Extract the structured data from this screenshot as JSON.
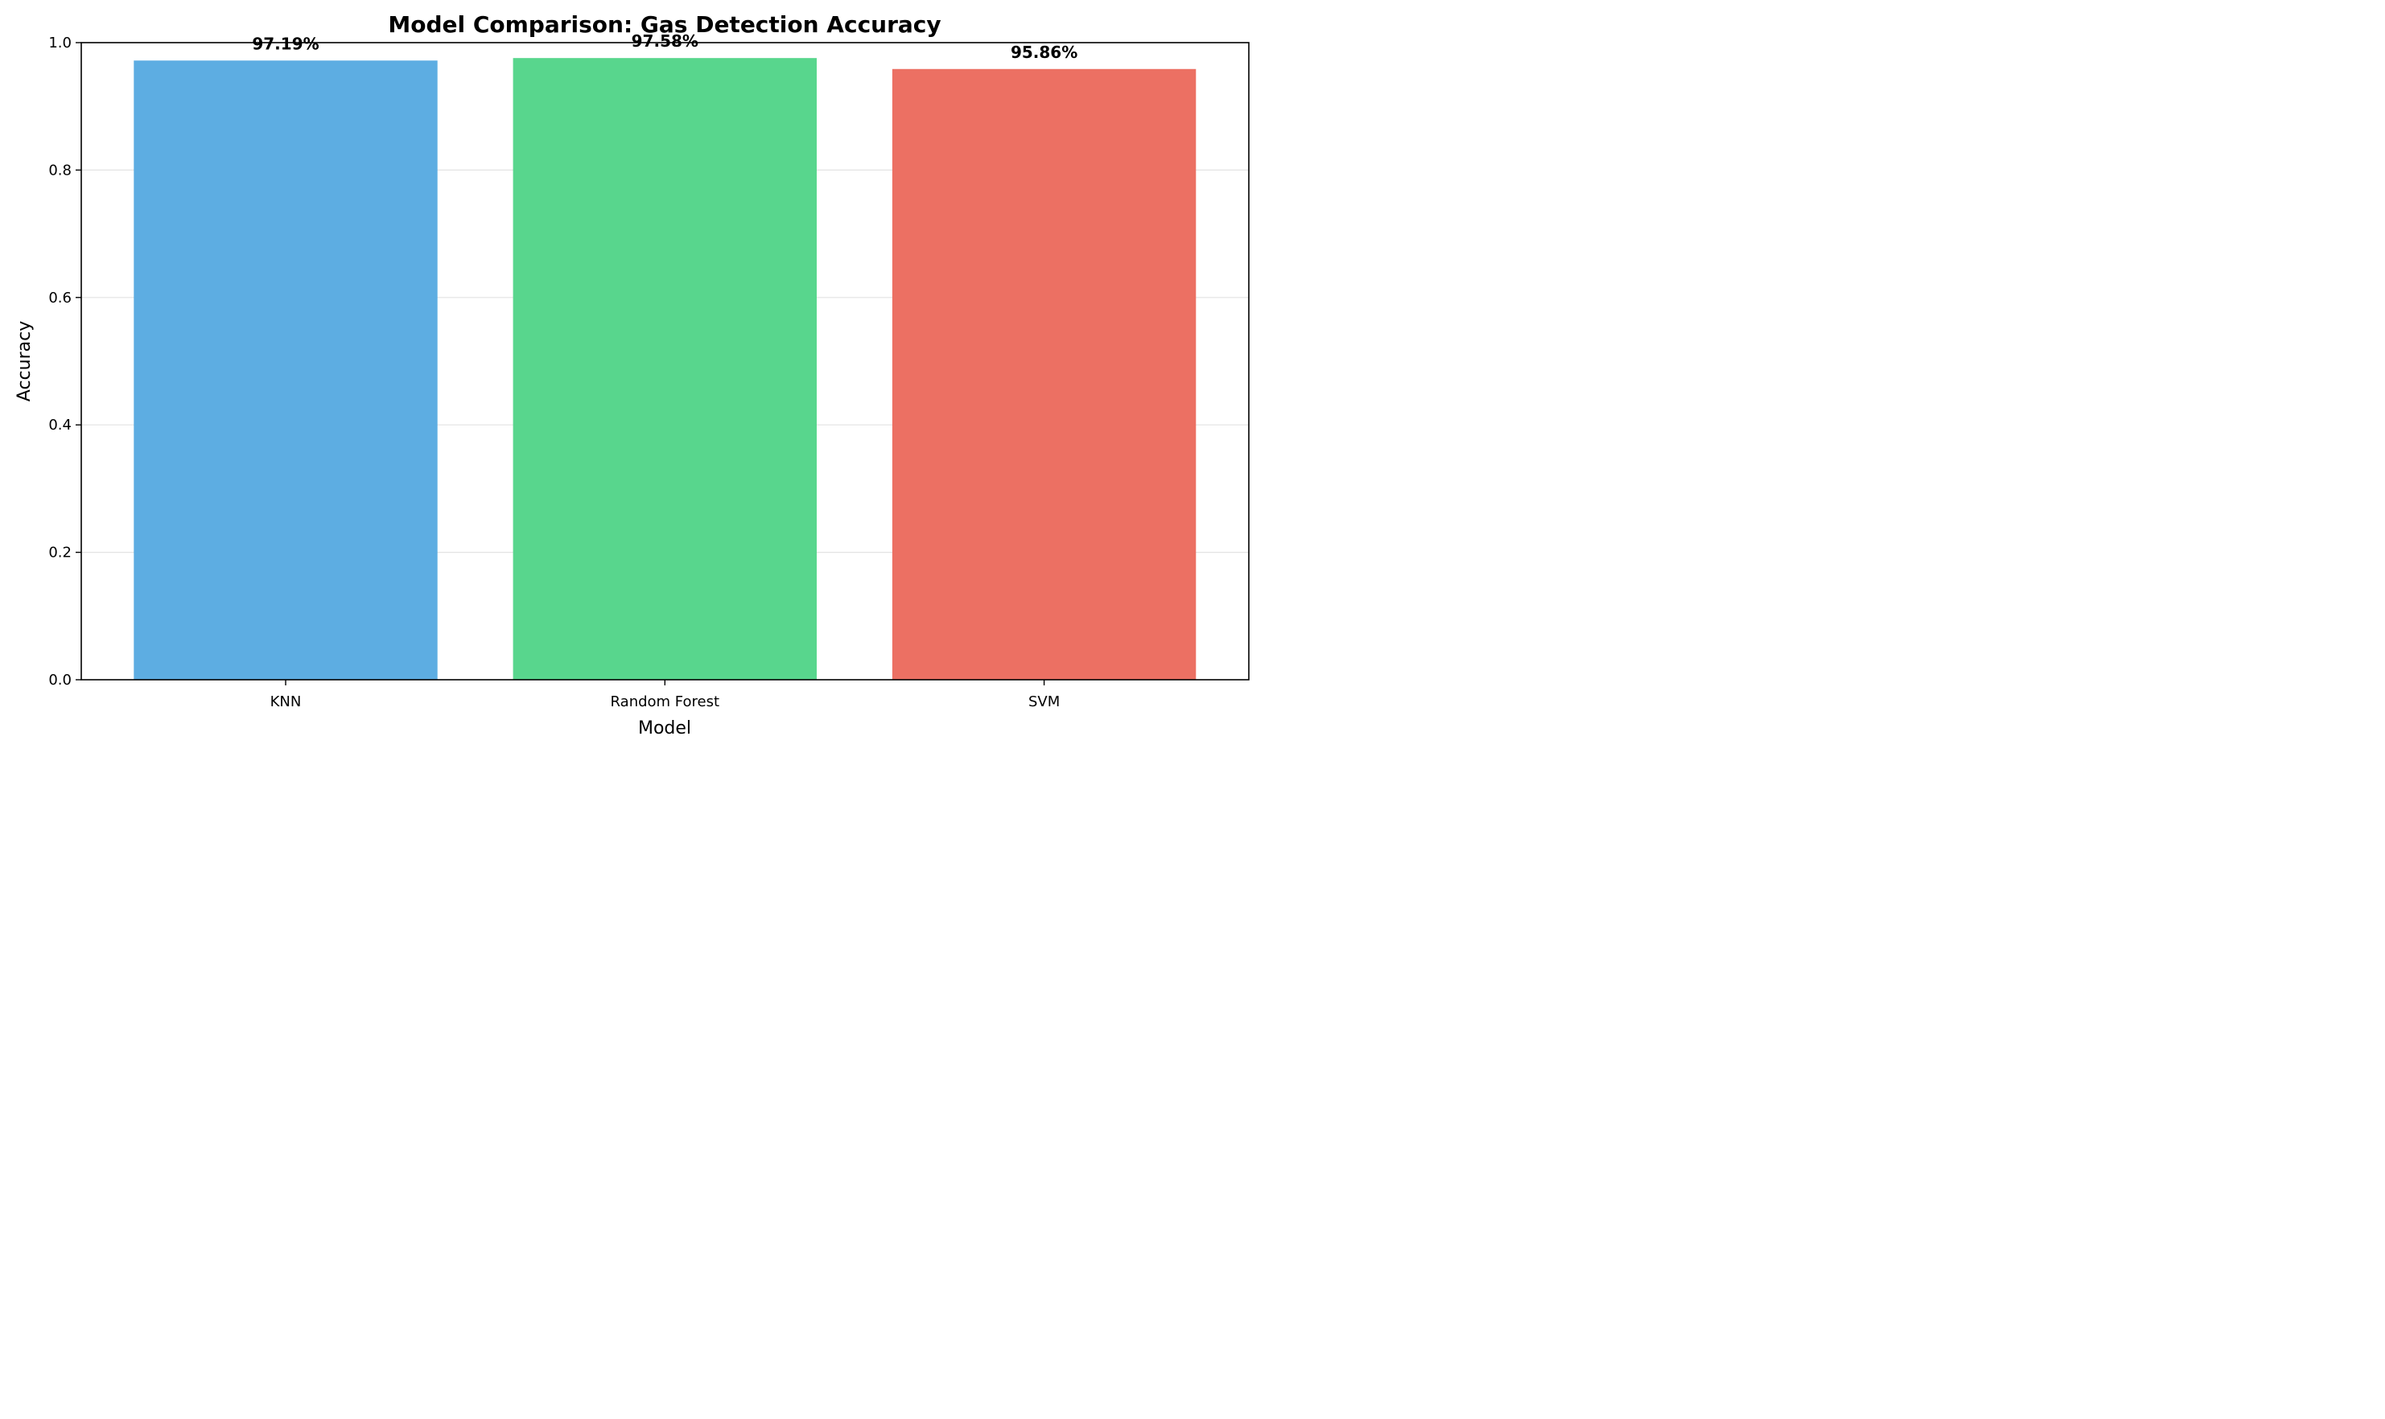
{
  "chart_data": {
    "type": "bar",
    "title": "Model Comparison: Gas Detection Accuracy",
    "xlabel": "Model",
    "ylabel": "Accuracy",
    "categories": [
      "KNN",
      "Random Forest",
      "SVM"
    ],
    "values": [
      0.9719,
      0.9758,
      0.9586
    ],
    "value_labels": [
      "97.19%",
      "97.58%",
      "95.86%"
    ],
    "colors": [
      "#5dade2",
      "#58d68d",
      "#ec7063"
    ],
    "ylim": [
      0,
      1.0
    ],
    "yticks": [
      0.0,
      0.2,
      0.4,
      0.6,
      0.8,
      1.0
    ],
    "ytick_labels": [
      "0.0",
      "0.2",
      "0.4",
      "0.6",
      "0.8",
      "1.0"
    ],
    "grid": "y-axis",
    "legend": "none"
  }
}
